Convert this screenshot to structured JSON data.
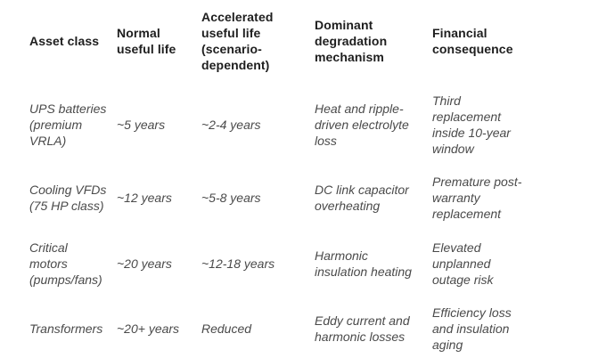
{
  "table": {
    "columns": [
      "Asset class",
      "Normal useful life",
      "Accelerated useful life (scenario-dependent)",
      "Dominant degradation mechanism",
      "Financial consequence"
    ],
    "rows": [
      [
        "UPS batteries (premium VRLA)",
        "~5 years",
        "~2-4 years",
        "Heat and ripple-driven electrolyte loss",
        "Third replacement inside 10-year window"
      ],
      [
        "Cooling VFDs (75 HP class)",
        "~12 years",
        "~5-8 years",
        "DC link capacitor overheating",
        "Premature post-warranty replacement"
      ],
      [
        "Critical motors (pumps/fans)",
        "~20 years",
        "~12-18 years",
        "Harmonic insulation heating",
        "Elevated unplanned outage risk"
      ],
      [
        "Transformers",
        "~20+ years",
        "Reduced",
        "Eddy current and harmonic losses",
        "Efficiency loss and insulation aging"
      ]
    ]
  },
  "colors": {
    "background": "#ffffff",
    "header_text": "#1e1e1e",
    "body_text": "#4a4a4a"
  }
}
